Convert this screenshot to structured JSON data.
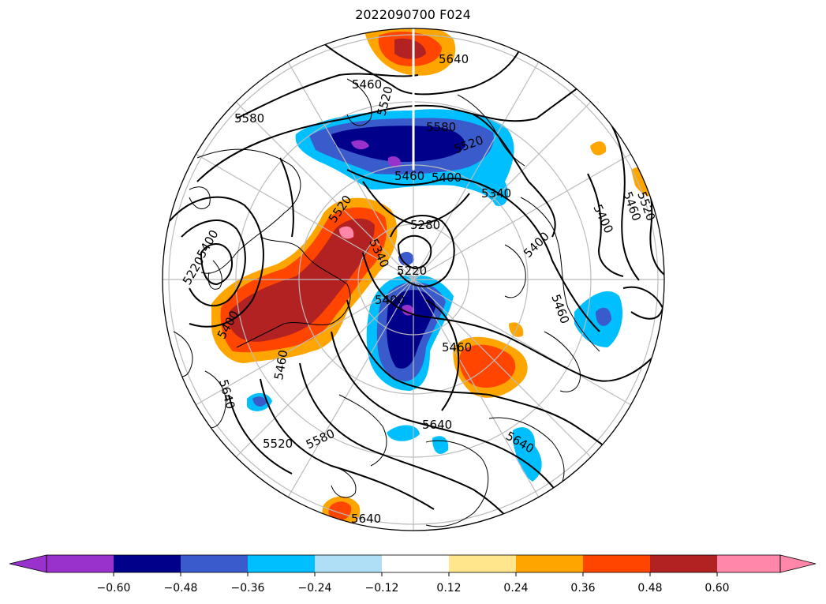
{
  "title": "2022090700 F024",
  "map": {
    "projection": "north-polar-stereographic",
    "field_contours": "500 hPa geopotential height (solid black)",
    "field_shaded": "anomaly tendency (colorbar)",
    "contour_labels": [
      "5640",
      "5460",
      "5580",
      "5520",
      "5580",
      "5520",
      "5460",
      "5400",
      "5340",
      "5460",
      "5520",
      "5400",
      "5280",
      "5520",
      "5220",
      "5340",
      "5400",
      "5460",
      "5400",
      "5460",
      "5640",
      "5220",
      "5400",
      "5640",
      "5520",
      "5580",
      "5640",
      "5400",
      "5460",
      "5640"
    ]
  },
  "colorbar": {
    "ticks": [
      "−0.60",
      "−0.48",
      "−0.36",
      "−0.24",
      "−0.12",
      "0.12",
      "0.24",
      "0.36",
      "0.48",
      "0.60"
    ],
    "colors": [
      "#9932cc",
      "#00008b",
      "#3a5bcc",
      "#00bfff",
      "#aedff7",
      "#ffffff",
      "#ffe68c",
      "#ffa500",
      "#ff4500",
      "#b22222",
      "#ff88aa"
    ],
    "extend": "both"
  }
}
